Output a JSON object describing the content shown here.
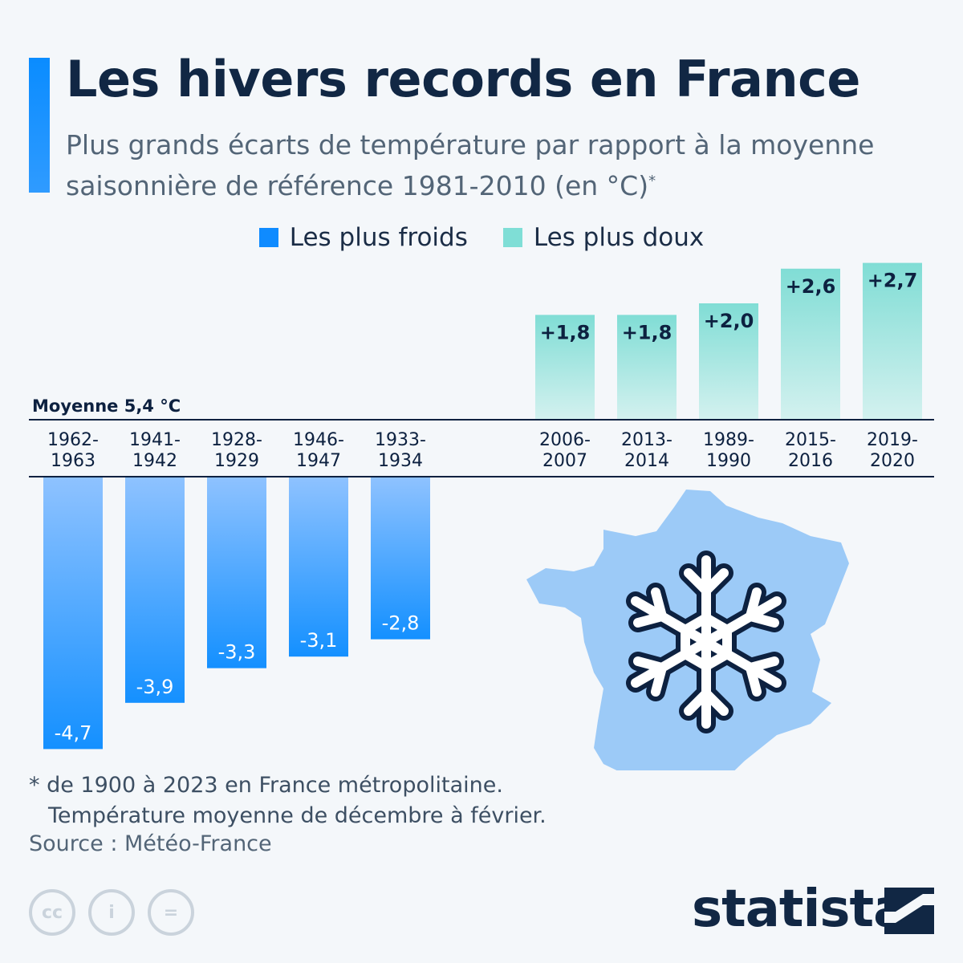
{
  "header": {
    "title": "Les hivers records en France",
    "subtitle": "Plus grands écarts de température par rapport à la moyenne saisonnière de référence 1981-2010 (en °C)",
    "subtitle_mark": "*"
  },
  "legend": {
    "cold_label": "Les plus froids",
    "warm_label": "Les plus doux"
  },
  "colors": {
    "cold": "#0f8bff",
    "warm": "#7fded6",
    "accent": "#0a8cff",
    "map": "#9ccaf7"
  },
  "chart_data": {
    "type": "bar",
    "title": "Les hivers records en France",
    "baseline_label": "Moyenne 5,4 °C",
    "series": [
      {
        "name": "Les plus froids",
        "categories": [
          "1962-1963",
          "1941-1942",
          "1928-1929",
          "1946-1947",
          "1933-1934"
        ],
        "values": [
          -4.7,
          -3.9,
          -3.3,
          -3.1,
          -2.8
        ],
        "labels": [
          "-4,7",
          "-3,9",
          "-3,3",
          "-3,1",
          "-2,8"
        ]
      },
      {
        "name": "Les plus doux",
        "categories": [
          "2006-2007",
          "2013-2014",
          "1989-1990",
          "2015-2016",
          "2019-2020"
        ],
        "values": [
          1.8,
          1.8,
          2.0,
          2.6,
          2.7
        ],
        "labels": [
          "+1,8",
          "+1,8",
          "+2,0",
          "+2,6",
          "+2,7"
        ]
      }
    ]
  },
  "icons": {
    "map": "france-map-icon",
    "snowflake": "snowflake-icon"
  },
  "footnote": {
    "line1": "* de 1900 à 2023 en France métropolitaine.",
    "line2": "Température moyenne de décembre à février."
  },
  "source": "Source : Météo-France",
  "license_icons": [
    "cc",
    "i",
    "="
  ],
  "brand": "statista"
}
